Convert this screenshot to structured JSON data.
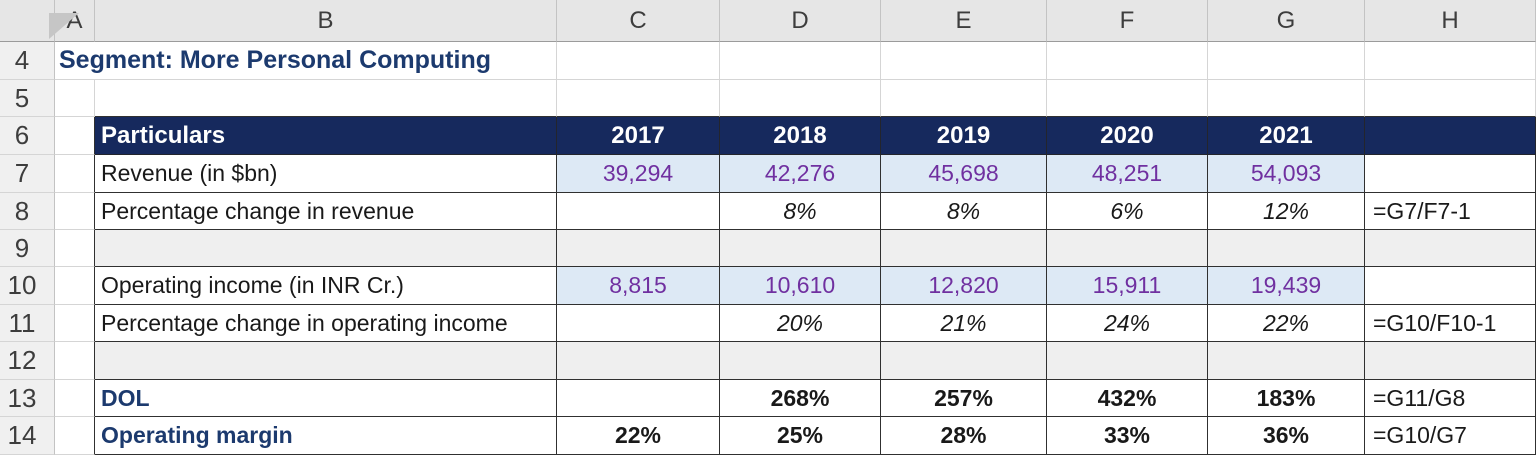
{
  "title": {
    "text": "Segment: More Personal Computing"
  },
  "grid": {
    "columns": [
      "A",
      "B",
      "C",
      "D",
      "E",
      "F",
      "G",
      "H"
    ],
    "rows": [
      "4",
      "5",
      "6",
      "7",
      "8",
      "9",
      "10",
      "11",
      "12",
      "13",
      "14"
    ]
  },
  "table": {
    "header": {
      "particulars": "Particulars",
      "years": [
        "2017",
        "2018",
        "2019",
        "2020",
        "2021"
      ]
    },
    "revenue": {
      "label": "Revenue (in $bn)",
      "values": [
        "39,294",
        "42,276",
        "45,698",
        "48,251",
        "54,093"
      ],
      "formula": ""
    },
    "revenue_change": {
      "label": "Percentage change in revenue",
      "values": [
        "",
        "8%",
        "8%",
        "6%",
        "12%"
      ],
      "formula": "=G7/F7-1"
    },
    "op_income": {
      "label": "Operating income (in INR Cr.)",
      "values": [
        "8,815",
        "10,610",
        "12,820",
        "15,911",
        "19,439"
      ],
      "formula": ""
    },
    "op_income_change": {
      "label": "Percentage change in operating income",
      "values": [
        "",
        "20%",
        "21%",
        "24%",
        "22%"
      ],
      "formula": "=G10/F10-1"
    },
    "dol": {
      "label": "DOL",
      "values": [
        "",
        "268%",
        "257%",
        "432%",
        "183%"
      ],
      "formula": "=G11/G8"
    },
    "op_margin": {
      "label": "Operating margin",
      "values": [
        "22%",
        "25%",
        "28%",
        "33%",
        "36%"
      ],
      "formula": "=G10/G7"
    }
  },
  "colors": {
    "header_navy": "#16295d",
    "accent_navy_text": "#1c3a6e",
    "value_fill_blue": "#dde9f5",
    "value_text_purple": "#7030a0",
    "blank_row_gray": "#efefef"
  }
}
